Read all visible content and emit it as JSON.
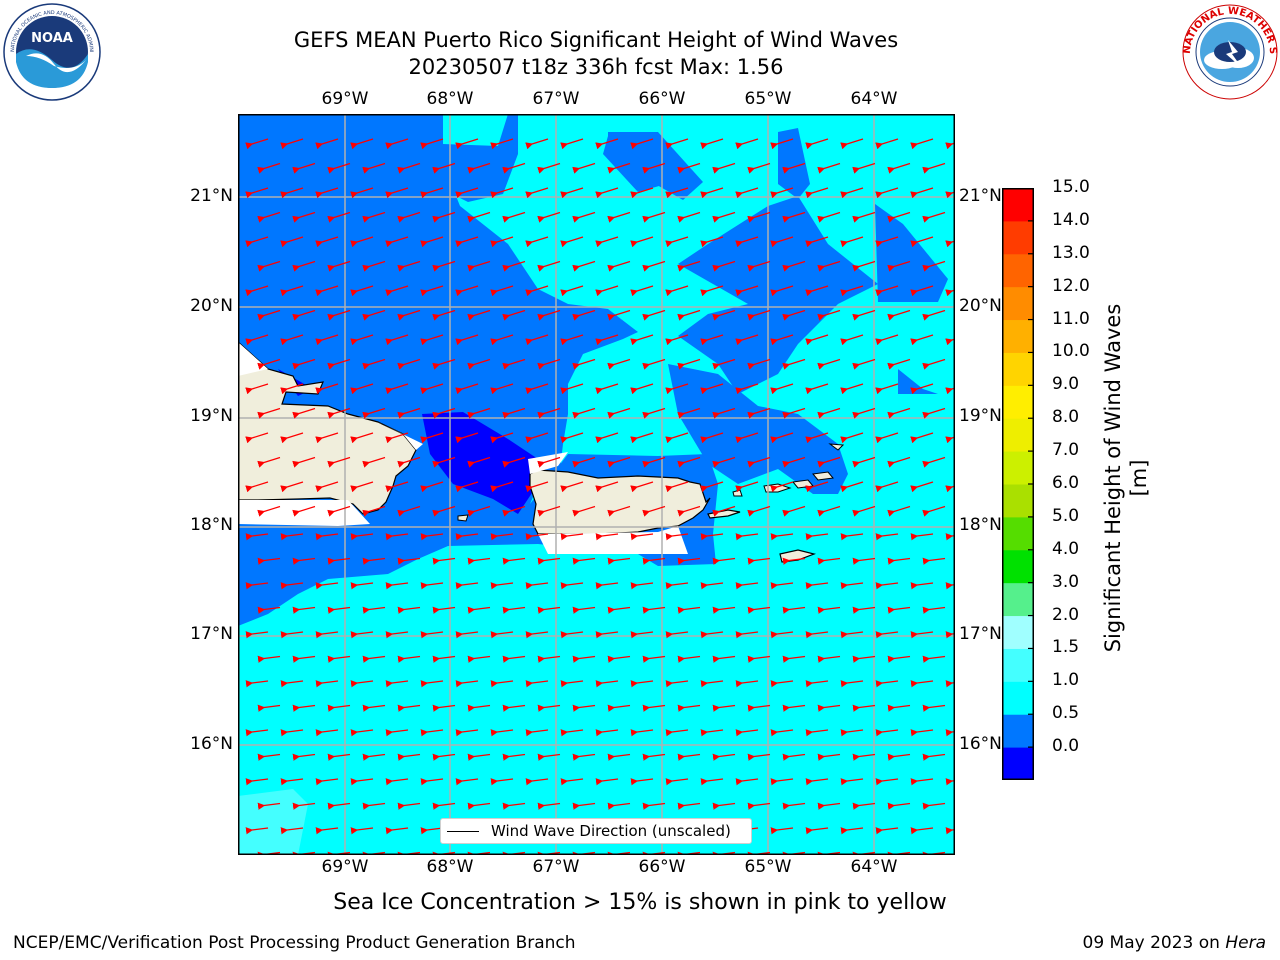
{
  "header": {
    "title_line1": "GEFS MEAN Puerto Rico Significant Height of Wind Waves",
    "title_line2": "20230507 t18z 336h fcst   Max: 1.56"
  },
  "logos": {
    "noaa_text": "NOAA",
    "noaa_ring_text": "NATIONAL OCEANIC AND ATMOSPHERIC ADMINISTRATION · U.S. DEPARTMENT OF COMMERCE",
    "nws_ring_text": "NATIONAL WEATHER SERVICE"
  },
  "map": {
    "longitude_labels": [
      "69°W",
      "68°W",
      "67°W",
      "66°W",
      "65°W",
      "64°W"
    ],
    "latitude_labels": [
      "21°N",
      "20°N",
      "19°N",
      "18°N",
      "17°N",
      "16°N"
    ],
    "legend_label": "Wind Wave Direction (unscaled)",
    "wind_wave_direction": "westward (from the east)",
    "colors": {
      "level_0_0.5": "#0000ff",
      "level_0.5_1": "#0077ff",
      "level_1_1.5": "#00ffff",
      "level_1.5_2": "#44ffff",
      "land": "#f0eedc",
      "arrows": "#ff0000",
      "grid": "#b0b0b0"
    }
  },
  "colorbar": {
    "ticks": [
      "15.0",
      "14.0",
      "13.0",
      "12.0",
      "11.0",
      "10.0",
      "9.0",
      "8.0",
      "7.0",
      "6.0",
      "5.0",
      "4.0",
      "3.0",
      "2.0",
      "1.5",
      "1.0",
      "0.5",
      "0.0"
    ],
    "colors_bottom_to_top": [
      "#0000ff",
      "#0077ff",
      "#00ffff",
      "#44ffff",
      "#a0ffff",
      "#55f08c",
      "#00e100",
      "#55dd00",
      "#aae000",
      "#ccf000",
      "#eeee00",
      "#ffee00",
      "#ffd400",
      "#ffb000",
      "#ff8c00",
      "#ff6400",
      "#ff3c00",
      "#ff0000"
    ],
    "label": "Significant Height of Wind Waves [m]"
  },
  "footer": {
    "note": "Sea Ice Concentration > 15% is shown in pink to yellow",
    "left": "NCEP/EMC/Verification Post Processing Product Generation Branch",
    "right_prefix": "09 May 2023 on ",
    "right_machine": "Hera"
  }
}
